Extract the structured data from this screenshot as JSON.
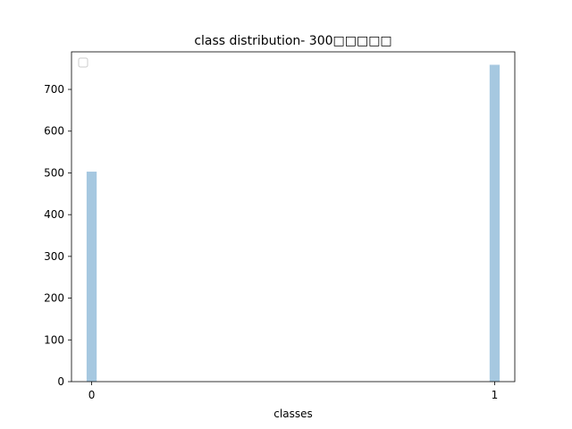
{
  "chart_data": {
    "type": "bar",
    "title": "class distribution- 300□□□□□",
    "xlabel": "classes",
    "ylabel": "",
    "categories": [
      "0",
      "1"
    ],
    "x": [
      0,
      1
    ],
    "values": [
      503,
      759
    ],
    "xlim": [
      -0.05,
      1.05
    ],
    "ylim": [
      0,
      790
    ],
    "yticks": [
      0,
      100,
      200,
      300,
      400,
      500,
      600,
      700
    ],
    "xticks": [
      0,
      1
    ],
    "bar_width": 0.025,
    "bar_color": "#a6c8e0",
    "grid": false,
    "legend": {
      "placement": "top-left",
      "entries": []
    }
  }
}
